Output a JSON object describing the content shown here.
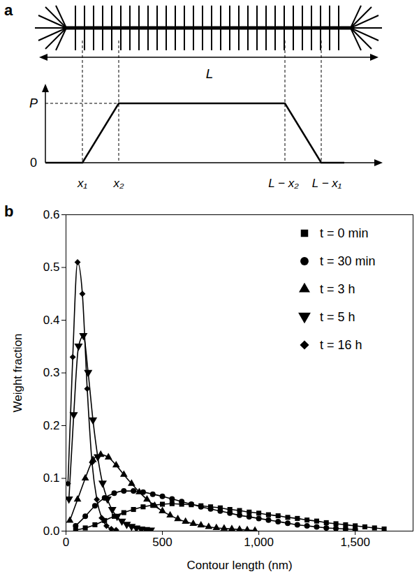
{
  "diagram": {
    "panel_label": "a",
    "length_label": "L",
    "level_labels": {
      "top": "P",
      "zero": "0"
    },
    "position_labels": [
      "x₁",
      "x₂",
      "L − x₂",
      "L − x₁"
    ]
  },
  "chart_data": {
    "type": "line",
    "panel_label": "b",
    "x_label": "Contour length (nm)",
    "y_label": "Weight fraction",
    "xlim": [
      0,
      1800
    ],
    "xticks": [
      0,
      500,
      {
        "value": 1000,
        "label": "1,000"
      },
      {
        "value": 1500,
        "label": "1,500"
      }
    ],
    "ylim": [
      0,
      0.6
    ],
    "yticks": [
      {
        "value": 0,
        "label": "0.0"
      },
      0.1,
      0.2,
      0.3,
      0.4,
      0.5,
      0.6
    ],
    "legend": "top-right",
    "color": "#000000",
    "series": [
      {
        "name": "t = 0 min",
        "marker": "square",
        "line_style": "solid",
        "x": [
          50,
          100,
          150,
          200,
          250,
          300,
          350,
          400,
          450,
          500,
          550,
          600,
          650,
          700,
          750,
          800,
          850,
          900,
          950,
          1000,
          1050,
          1100,
          1150,
          1200,
          1250,
          1300,
          1350,
          1400,
          1450,
          1500,
          1550,
          1600,
          1650
        ],
        "values": [
          0.002,
          0.006,
          0.012,
          0.02,
          0.028,
          0.035,
          0.041,
          0.046,
          0.049,
          0.051,
          0.052,
          0.051,
          0.05,
          0.048,
          0.046,
          0.044,
          0.041,
          0.039,
          0.036,
          0.034,
          0.031,
          0.029,
          0.026,
          0.024,
          0.021,
          0.019,
          0.016,
          0.014,
          0.012,
          0.01,
          0.008,
          0.006,
          0.004
        ]
      },
      {
        "name": "t = 30 min",
        "marker": "circle",
        "line_style": "solid",
        "x": [
          50,
          100,
          150,
          200,
          250,
          300,
          350,
          400,
          450,
          500,
          550,
          600,
          650,
          700,
          750,
          800,
          850,
          900,
          950,
          1000,
          1050,
          1100,
          1150,
          1200,
          1250,
          1300,
          1350,
          1400,
          1450,
          1500
        ],
        "values": [
          0.01,
          0.028,
          0.048,
          0.063,
          0.072,
          0.076,
          0.076,
          0.074,
          0.07,
          0.066,
          0.061,
          0.056,
          0.051,
          0.046,
          0.042,
          0.038,
          0.034,
          0.03,
          0.027,
          0.024,
          0.021,
          0.018,
          0.015,
          0.012,
          0.01,
          0.008,
          0.006,
          0.005,
          0.004,
          0.003
        ]
      },
      {
        "name": "t = 3 h",
        "marker": "triangle",
        "line_style": "solid",
        "x": [
          20,
          60,
          100,
          140,
          180,
          220,
          260,
          300,
          340,
          380,
          420,
          460,
          500,
          540,
          580,
          620,
          660,
          700,
          740,
          780,
          820,
          860,
          900,
          940,
          980
        ],
        "values": [
          0.02,
          0.06,
          0.1,
          0.135,
          0.145,
          0.14,
          0.125,
          0.107,
          0.09,
          0.074,
          0.06,
          0.048,
          0.038,
          0.03,
          0.023,
          0.018,
          0.014,
          0.011,
          0.008,
          0.006,
          0.005,
          0.004,
          0.003,
          0.002,
          0.001
        ]
      },
      {
        "name": "t = 5 h",
        "marker": "triangle-down",
        "line_style": "solid",
        "x": [
          15,
          40,
          65,
          90,
          115,
          140,
          165,
          190,
          215,
          240,
          265,
          290,
          315,
          340,
          365,
          390,
          415,
          440
        ],
        "values": [
          0.06,
          0.22,
          0.35,
          0.37,
          0.3,
          0.21,
          0.14,
          0.09,
          0.06,
          0.04,
          0.027,
          0.018,
          0.012,
          0.008,
          0.005,
          0.003,
          0.002,
          0.001
        ]
      },
      {
        "name": "t = 16 h",
        "marker": "diamond",
        "line_style": "solid",
        "x": [
          10,
          35,
          60,
          85,
          110,
          135,
          160,
          185,
          210,
          235,
          260
        ],
        "values": [
          0.09,
          0.33,
          0.51,
          0.45,
          0.27,
          0.13,
          0.06,
          0.025,
          0.01,
          0.004,
          0.002
        ]
      }
    ]
  }
}
